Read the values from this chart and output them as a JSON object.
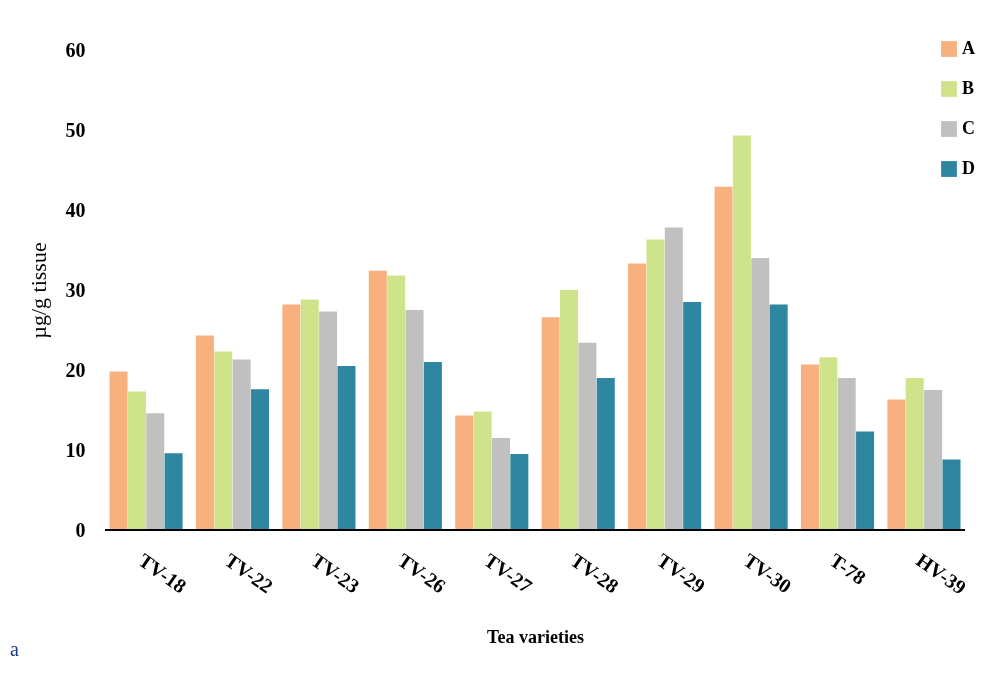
{
  "chart_data": {
    "type": "bar",
    "xlabel": "Tea varieties",
    "ylabel": "µg/g tissue",
    "categories": [
      "TV-18",
      "TV-22",
      "TV-23",
      "TV-26",
      "TV-27",
      "TV-28",
      "TV-29",
      "TV-30",
      "T-78",
      "HV-39"
    ],
    "series": [
      {
        "name": "A",
        "color": "#f9b07f",
        "values": [
          19.8,
          24.3,
          28.2,
          32.4,
          14.3,
          26.6,
          33.3,
          42.9,
          20.7,
          16.3
        ]
      },
      {
        "name": "B",
        "color": "#cfe38b",
        "values": [
          17.3,
          22.3,
          28.8,
          31.8,
          14.8,
          30.0,
          36.3,
          49.3,
          21.6,
          19.0
        ]
      },
      {
        "name": "C",
        "color": "#c0c0c0",
        "values": [
          14.6,
          21.3,
          27.3,
          27.5,
          11.5,
          23.4,
          37.8,
          34.0,
          19.0,
          17.5
        ]
      },
      {
        "name": "D",
        "color": "#2e86a0",
        "values": [
          9.6,
          17.6,
          20.5,
          21.0,
          9.5,
          19.0,
          28.5,
          28.2,
          12.3,
          8.8
        ]
      }
    ],
    "ylim": [
      0,
      60
    ],
    "yticks": [
      0,
      10,
      20,
      30,
      40,
      50,
      60
    ],
    "grid": false,
    "legend": "top right",
    "annotations": [
      "a"
    ]
  }
}
